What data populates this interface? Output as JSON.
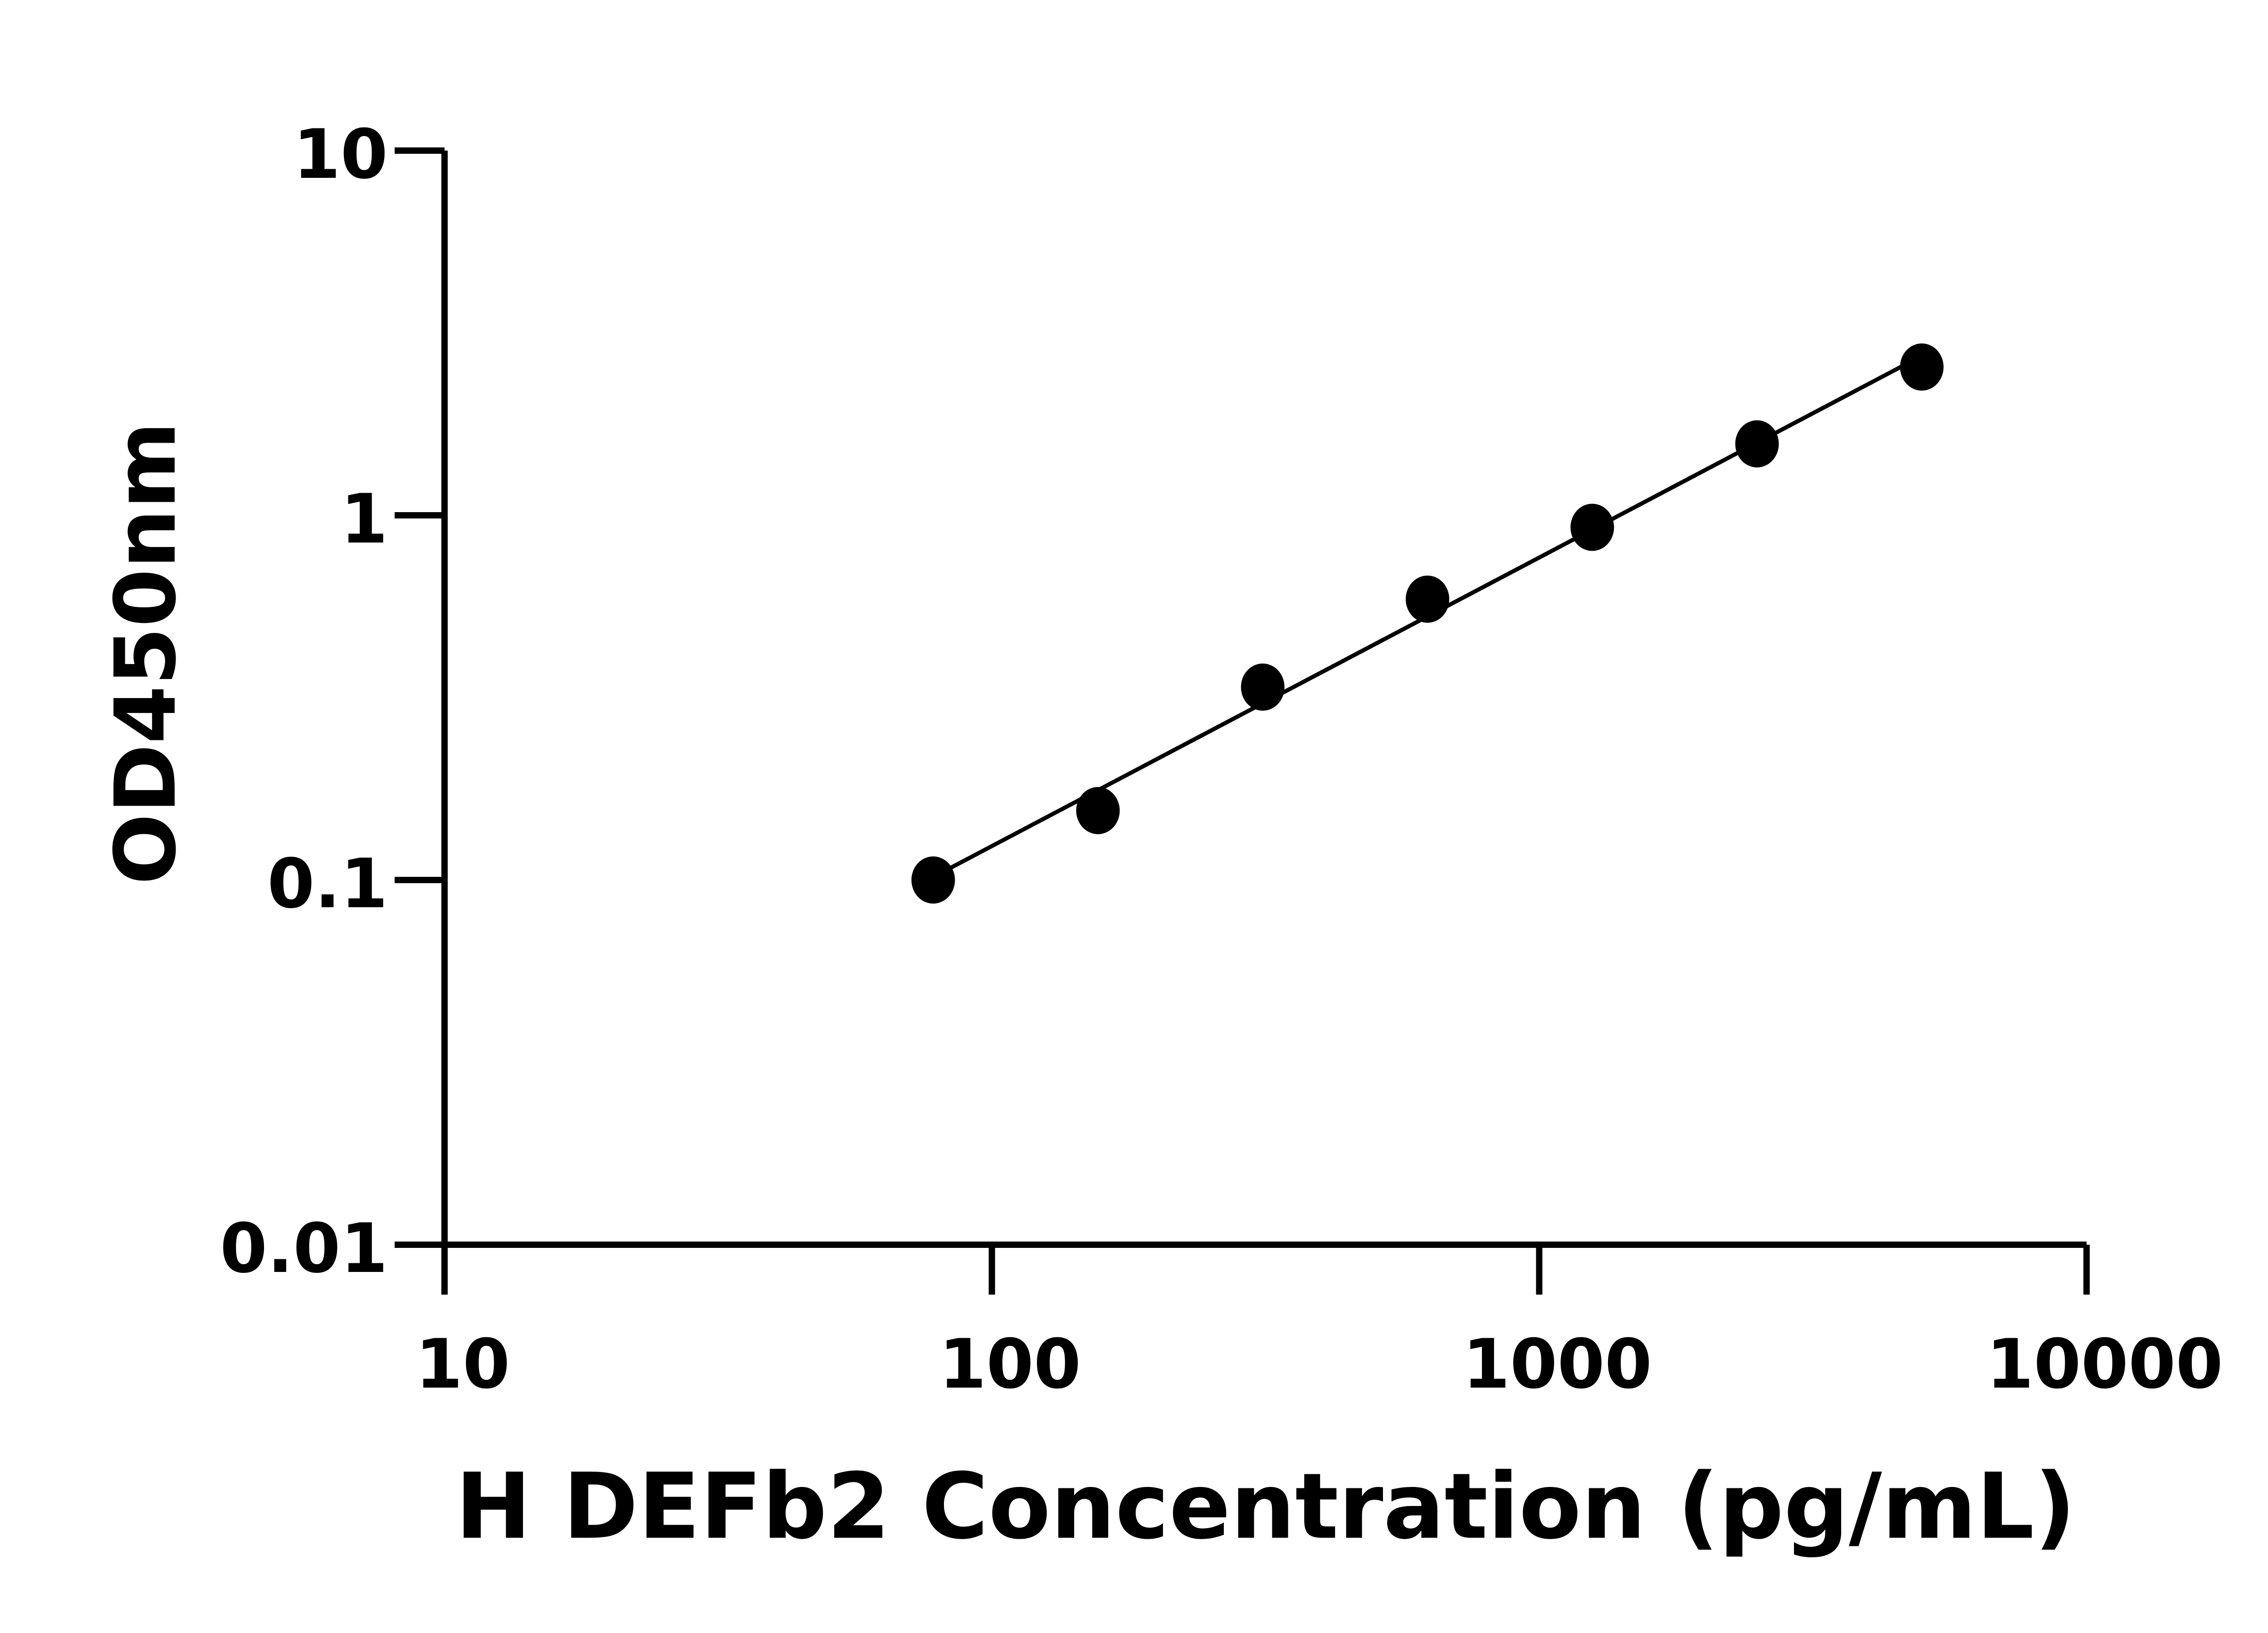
{
  "chart_data": {
    "type": "scatter",
    "title": "",
    "xlabel": "H DEFb2 Concentration (pg/mL)",
    "ylabel": "OD450nm",
    "xscale": "log",
    "yscale": "log",
    "xlim": [
      10,
      10000
    ],
    "ylim": [
      0.01,
      10
    ],
    "xticks": [
      10,
      100,
      1000,
      10000
    ],
    "xtick_labels": [
      "10",
      "100",
      "1000",
      "10000"
    ],
    "yticks": [
      0.01,
      0.1,
      1,
      10
    ],
    "ytick_labels": [
      "0.01",
      "0.1",
      "1",
      "10"
    ],
    "grid": false,
    "fit_line": true,
    "series": [
      {
        "x": [
          78.125,
          156.25,
          312.5,
          625,
          1250,
          2500,
          5000
        ],
        "y": [
          0.1,
          0.155,
          0.338,
          0.589,
          0.927,
          1.57,
          2.55
        ]
      }
    ],
    "colors": {
      "marker": "#000000",
      "line": "#000000",
      "axis": "#000000"
    }
  }
}
